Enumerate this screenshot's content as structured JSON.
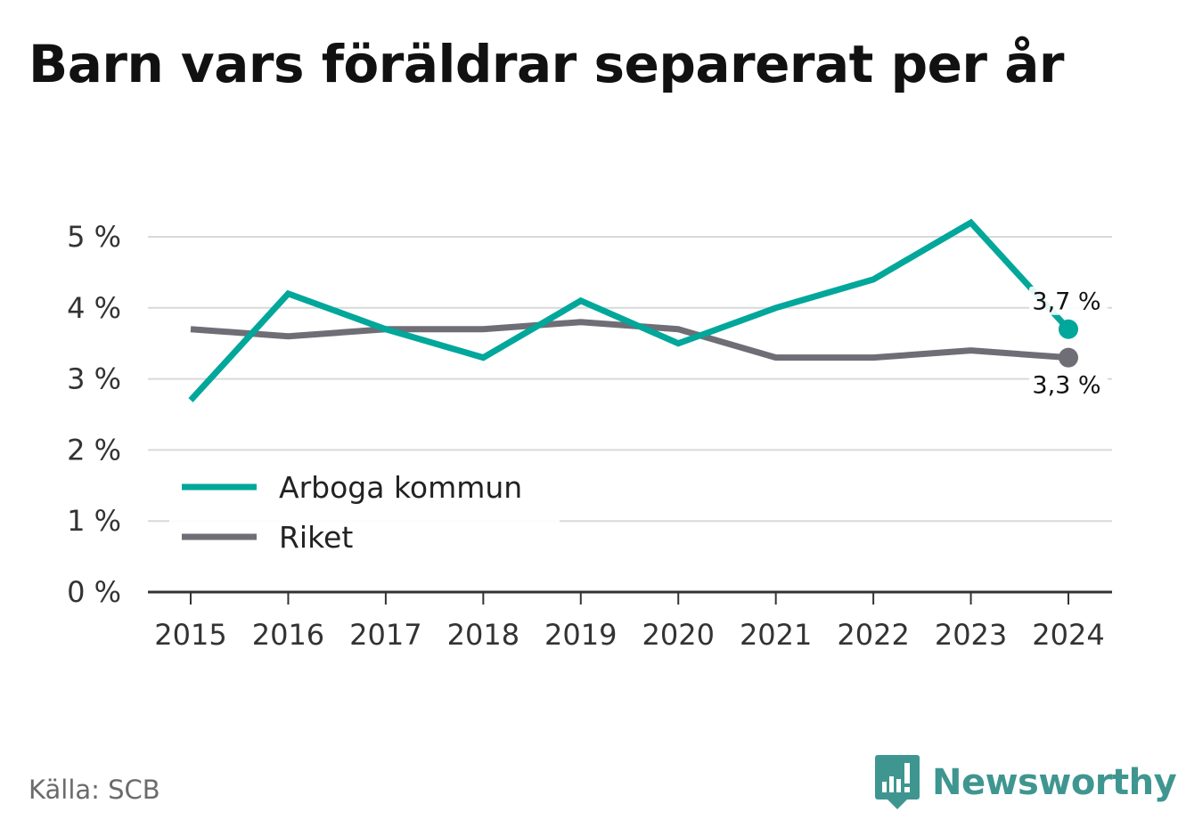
{
  "title": "Barn vars föräldrar separerat per år",
  "source": "Källa: SCB",
  "brand": "Newsworthy",
  "colors": {
    "accent": "#00a79a",
    "secondary": "#6f6e76",
    "grid": "#d9d9d9",
    "axis": "#333333",
    "brand": "#3f9690"
  },
  "chart_data": {
    "type": "line",
    "x": [
      "2015",
      "2016",
      "2017",
      "2018",
      "2019",
      "2020",
      "2021",
      "2022",
      "2023",
      "2024"
    ],
    "series": [
      {
        "name": "Arboga kommun",
        "color": "#00a79a",
        "values": [
          2.7,
          4.2,
          3.7,
          3.3,
          4.1,
          3.5,
          4.0,
          4.4,
          5.2,
          3.7
        ],
        "end_label": "3,7 %"
      },
      {
        "name": "Riket",
        "color": "#6f6e76",
        "values": [
          3.7,
          3.6,
          3.7,
          3.7,
          3.8,
          3.7,
          3.3,
          3.3,
          3.4,
          3.3
        ],
        "end_label": "3,3 %"
      }
    ],
    "y_ticks": [
      {
        "value": 0,
        "label": "0 %"
      },
      {
        "value": 1,
        "label": "1 %"
      },
      {
        "value": 2,
        "label": "2 %"
      },
      {
        "value": 3,
        "label": "3 %"
      },
      {
        "value": 4,
        "label": "4 %"
      },
      {
        "value": 5,
        "label": "5 %"
      }
    ],
    "ylim": [
      0,
      5
    ],
    "grid": true,
    "legend_position": "bottom-left"
  }
}
